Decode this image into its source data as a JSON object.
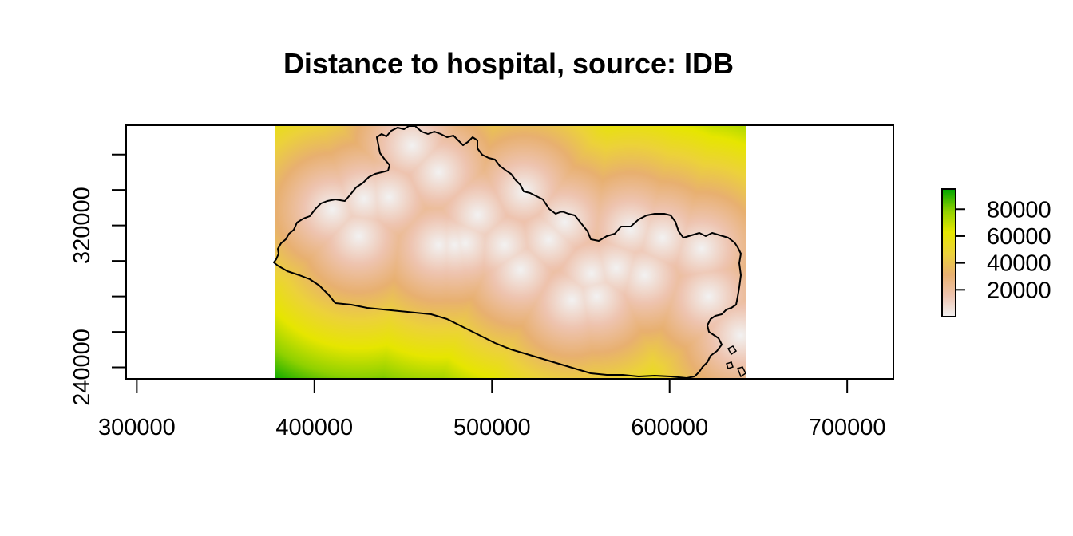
{
  "chart_data": {
    "type": "heatmap",
    "title": "Distance to hospital, source: IDB",
    "xlabel": "",
    "ylabel": "",
    "x_ticks": [
      300000,
      400000,
      500000,
      600000,
      700000
    ],
    "x_tick_labels": [
      "300000",
      "400000",
      "500000",
      "600000",
      "700000"
    ],
    "xlim": [
      294000,
      726000
    ],
    "y_ticks": [
      240000,
      260000,
      280000,
      300000,
      320000,
      340000,
      360000
    ],
    "y_tick_labels": [
      "240000",
      "",
      "",
      "",
      "320000",
      "",
      ""
    ],
    "ylim": [
      233500,
      376500
    ],
    "raster_extent": {
      "xmin": 378000,
      "xmax": 643000,
      "ymin": 233500,
      "ymax": 376500
    },
    "legend": {
      "position": "right",
      "ticks": [
        20000,
        40000,
        60000,
        80000
      ],
      "tick_labels": [
        "20000",
        "40000",
        "60000",
        "80000"
      ],
      "range": [
        0,
        95000
      ],
      "colors": [
        "#f2f2f2",
        "#eec4b0",
        "#e8b070",
        "#ecd23a",
        "#e6e600",
        "#8fd100",
        "#00a600"
      ]
    },
    "hospitals_xy": [
      [
        455000,
        365000
      ],
      [
        470000,
        350000
      ],
      [
        428000,
        335000
      ],
      [
        442000,
        336000
      ],
      [
        410000,
        329000
      ],
      [
        492000,
        326000
      ],
      [
        518000,
        339000
      ],
      [
        507000,
        309000
      ],
      [
        532000,
        312000
      ],
      [
        541000,
        322000
      ],
      [
        425000,
        314000
      ],
      [
        470000,
        309000
      ],
      [
        479000,
        309000
      ],
      [
        485000,
        310000
      ],
      [
        516000,
        295000
      ],
      [
        556000,
        293000
      ],
      [
        570000,
        296000
      ],
      [
        586000,
        292000
      ],
      [
        578000,
        318000
      ],
      [
        596000,
        313000
      ],
      [
        618000,
        307000
      ],
      [
        545000,
        278000
      ],
      [
        559000,
        280000
      ],
      [
        622000,
        280000
      ],
      [
        640000,
        258000
      ]
    ],
    "grid": false
  }
}
